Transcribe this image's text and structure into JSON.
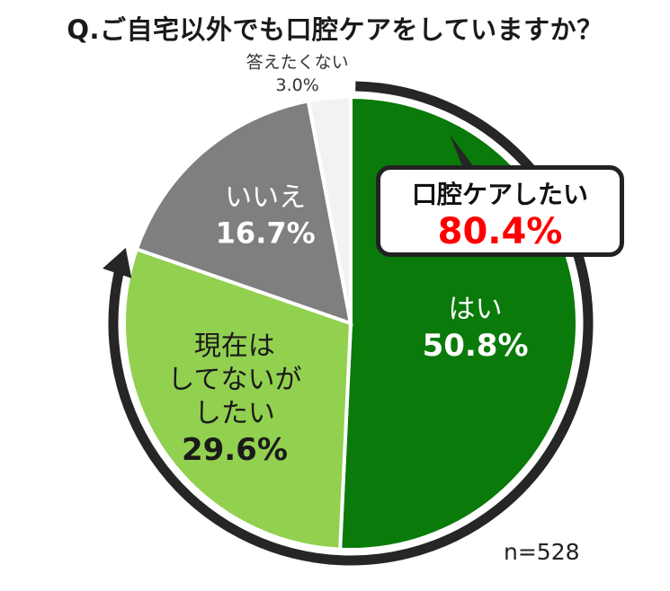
{
  "title": "Q.ご自宅以外でも口腔ケアをしていますか？",
  "sample_size": "n=528",
  "callout": {
    "label": "口腔ケアしたい",
    "value": "80.4%"
  },
  "colors": {
    "yes": "#0a7a0a",
    "not_yet": "#92d050",
    "no": "#7f7f7f",
    "no_answer": "#f2f2f2",
    "arrow": "#262626",
    "callout_value": "#ff0000"
  },
  "chart_data": {
    "type": "pie",
    "title": "Q.ご自宅以外でも口腔ケアをしていますか？",
    "slices": [
      {
        "key": "yes",
        "label": "はい",
        "value": 50.8,
        "value_label": "50.8%"
      },
      {
        "key": "not_yet",
        "label": "現在は\nしてないが\nしたい",
        "value": 29.6,
        "value_label": "29.6%"
      },
      {
        "key": "no",
        "label": "いいえ",
        "value": 16.7,
        "value_label": "16.7%"
      },
      {
        "key": "no_answer",
        "label": "答えたくない",
        "value": 3.0,
        "value_label": "3.0%"
      }
    ],
    "direction": "clockwise",
    "start": "top",
    "highlight": {
      "slices": [
        "yes",
        "not_yet"
      ],
      "label": "口腔ケアしたい",
      "value": 80.4
    }
  }
}
